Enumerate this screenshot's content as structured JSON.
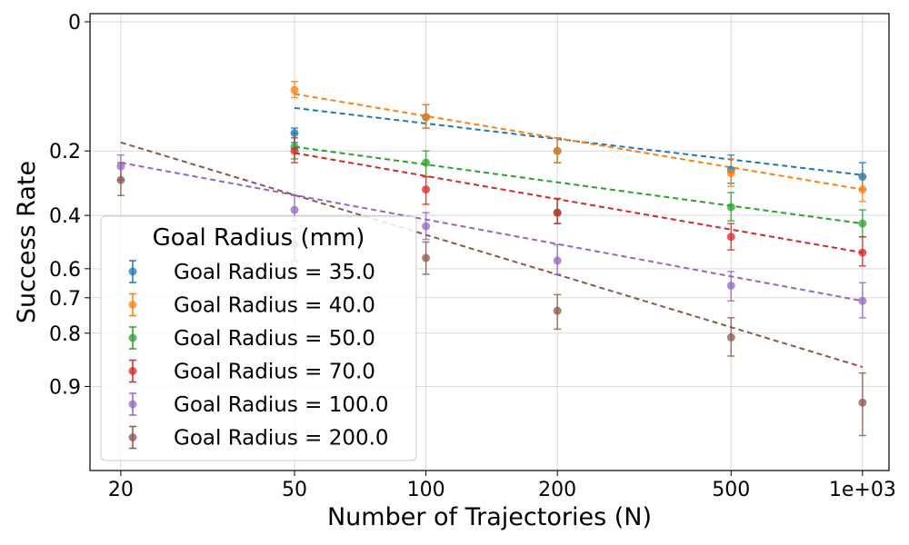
{
  "chart_data": {
    "type": "line",
    "xlabel": "Number of Trajectories (N)",
    "ylabel": "Success Rate",
    "x_scale": "log",
    "y_scale": "inverted-logit",
    "xlim": [
      17,
      1150
    ],
    "ylim": [
      0.0,
      0.97
    ],
    "x_ticks": [
      20,
      50,
      100,
      200,
      500,
      1000
    ],
    "x_tick_labels": [
      "20",
      "50",
      "100",
      "200",
      "500",
      "1e+03"
    ],
    "y_ticks": [
      0.0,
      0.2,
      0.4,
      0.6,
      0.7,
      0.8,
      0.9
    ],
    "y_tick_labels": [
      "0",
      "0.2",
      "0.4",
      "0.6",
      "0.7",
      "0.8",
      "0.9"
    ],
    "grid": true,
    "legend": {
      "title": "Goal Radius (mm)",
      "placement": "lower-left",
      "entries": [
        "Goal Radius = 35.0",
        "Goal Radius = 40.0",
        "Goal Radius = 50.0",
        "Goal Radius = 70.0",
        "Goal Radius = 100.0",
        "Goal Radius = 200.0"
      ]
    },
    "series": [
      {
        "name": "Goal Radius = 35.0",
        "color": "#1f77b4",
        "points": [
          {
            "x": 50,
            "y": 0.16,
            "lo": 0.15,
            "hi": 0.18
          },
          {
            "x": 100,
            "y": 0.13,
            "lo": 0.11,
            "hi": 0.15
          },
          {
            "x": 200,
            "y": 0.2,
            "lo": 0.17,
            "hi": 0.23
          },
          {
            "x": 500,
            "y": 0.25,
            "lo": 0.21,
            "hi": 0.29
          },
          {
            "x": 1000,
            "y": 0.27,
            "lo": 0.23,
            "hi": 0.31
          }
        ],
        "fit": [
          {
            "x": 50,
            "y": 0.115
          },
          {
            "x": 1000,
            "y": 0.265
          }
        ]
      },
      {
        "name": "Goal Radius = 40.0",
        "color": "#ff7f0e",
        "points": [
          {
            "x": 50,
            "y": 0.09,
            "lo": 0.08,
            "hi": 0.1
          },
          {
            "x": 100,
            "y": 0.13,
            "lo": 0.11,
            "hi": 0.15
          },
          {
            "x": 200,
            "y": 0.2,
            "lo": 0.17,
            "hi": 0.23
          },
          {
            "x": 500,
            "y": 0.26,
            "lo": 0.22,
            "hi": 0.3
          },
          {
            "x": 1000,
            "y": 0.31,
            "lo": 0.27,
            "hi": 0.35
          }
        ],
        "fit": [
          {
            "x": 50,
            "y": 0.095
          },
          {
            "x": 1000,
            "y": 0.31
          }
        ]
      },
      {
        "name": "Goal Radius = 50.0",
        "color": "#2ca02c",
        "points": [
          {
            "x": 50,
            "y": 0.19,
            "lo": 0.16,
            "hi": 0.22
          },
          {
            "x": 100,
            "y": 0.23,
            "lo": 0.2,
            "hi": 0.27
          },
          {
            "x": 200,
            "y": 0.39,
            "lo": 0.34,
            "hi": 0.43
          },
          {
            "x": 500,
            "y": 0.37,
            "lo": 0.32,
            "hi": 0.42
          },
          {
            "x": 1000,
            "y": 0.43,
            "lo": 0.38,
            "hi": 0.48
          }
        ],
        "fit": [
          {
            "x": 50,
            "y": 0.19
          },
          {
            "x": 1000,
            "y": 0.43
          }
        ]
      },
      {
        "name": "Goal Radius = 70.0",
        "color": "#d62728",
        "points": [
          {
            "x": 50,
            "y": 0.2,
            "lo": 0.17,
            "hi": 0.23
          },
          {
            "x": 100,
            "y": 0.31,
            "lo": 0.27,
            "hi": 0.36
          },
          {
            "x": 200,
            "y": 0.39,
            "lo": 0.34,
            "hi": 0.43
          },
          {
            "x": 500,
            "y": 0.48,
            "lo": 0.43,
            "hi": 0.53
          },
          {
            "x": 1000,
            "y": 0.54,
            "lo": 0.48,
            "hi": 0.59
          }
        ],
        "fit": [
          {
            "x": 50,
            "y": 0.205
          },
          {
            "x": 1000,
            "y": 0.54
          }
        ]
      },
      {
        "name": "Goal Radius = 100.0",
        "color": "#9467bd",
        "points": [
          {
            "x": 20,
            "y": 0.24,
            "lo": 0.21,
            "hi": 0.28
          },
          {
            "x": 50,
            "y": 0.38,
            "lo": 0.33,
            "hi": 0.42
          },
          {
            "x": 100,
            "y": 0.44,
            "lo": 0.39,
            "hi": 0.49
          },
          {
            "x": 200,
            "y": 0.57,
            "lo": 0.51,
            "hi": 0.62
          },
          {
            "x": 500,
            "y": 0.66,
            "lo": 0.61,
            "hi": 0.71
          },
          {
            "x": 1000,
            "y": 0.71,
            "lo": 0.65,
            "hi": 0.76
          }
        ],
        "fit": [
          {
            "x": 20,
            "y": 0.23
          },
          {
            "x": 1000,
            "y": 0.71
          }
        ]
      },
      {
        "name": "Goal Radius = 200.0",
        "color": "#8c564b",
        "points": [
          {
            "x": 20,
            "y": 0.28,
            "lo": 0.23,
            "hi": 0.33
          },
          {
            "x": 50,
            "y": 0.51,
            "lo": 0.45,
            "hi": 0.57
          },
          {
            "x": 100,
            "y": 0.56,
            "lo": 0.5,
            "hi": 0.62
          },
          {
            "x": 200,
            "y": 0.74,
            "lo": 0.69,
            "hi": 0.79
          },
          {
            "x": 500,
            "y": 0.81,
            "lo": 0.76,
            "hi": 0.85
          },
          {
            "x": 1000,
            "y": 0.92,
            "lo": 0.88,
            "hi": 0.95
          }
        ],
        "fit": [
          {
            "x": 20,
            "y": 0.18
          },
          {
            "x": 1000,
            "y": 0.87
          }
        ]
      }
    ]
  }
}
